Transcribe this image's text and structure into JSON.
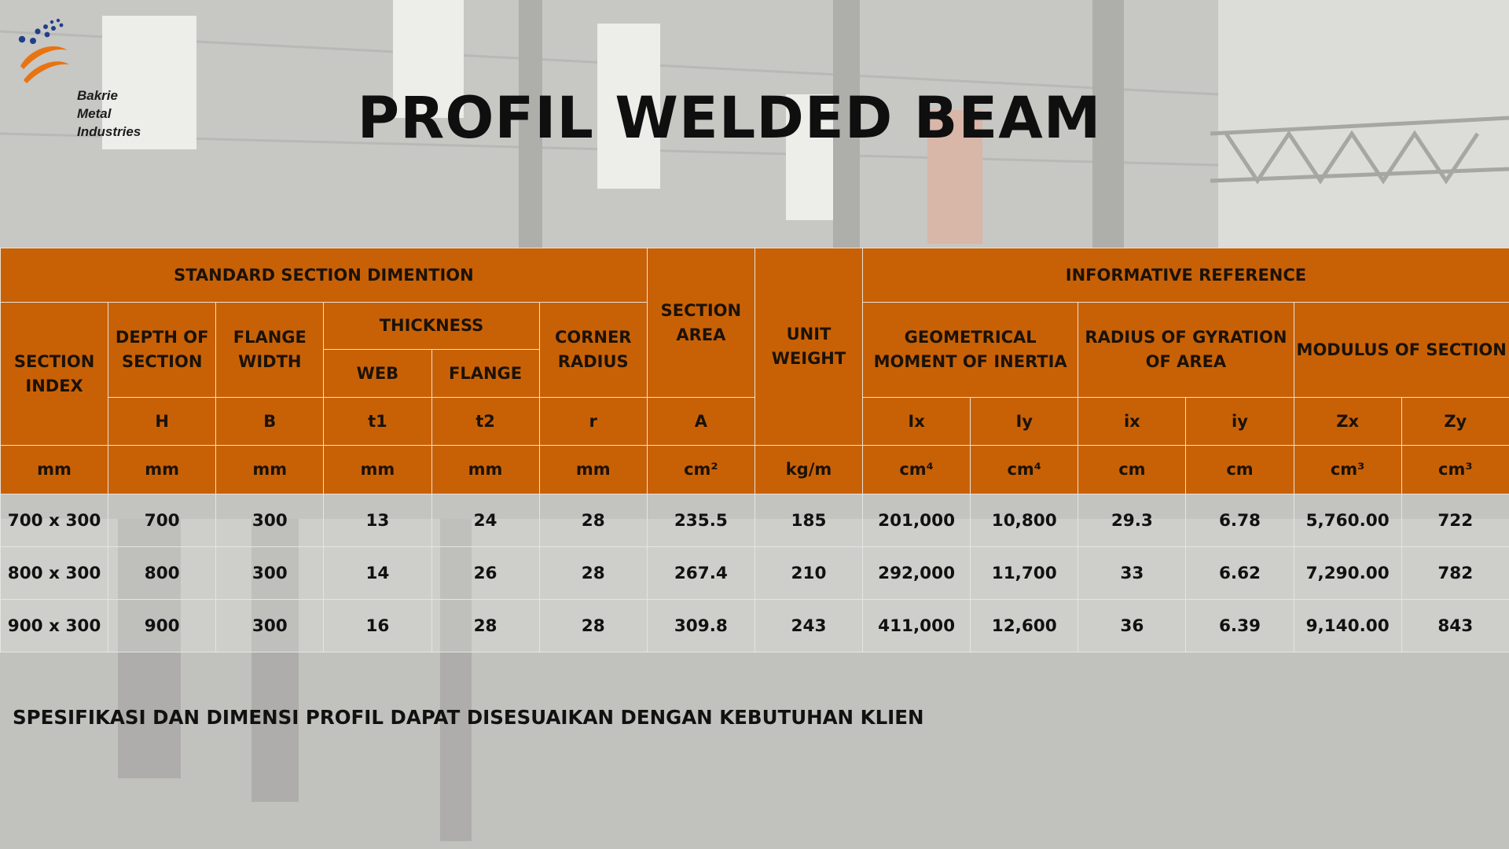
{
  "brand": {
    "name_lines": [
      "Bakrie",
      "Metal",
      "Industries"
    ],
    "logo_icon": "bakrie-swoosh-logo",
    "accent_color": "#e87411",
    "dot_color": "#1f3f8a"
  },
  "title": "PROFIL WELDED BEAM",
  "table": {
    "header_color": "#c86106",
    "groups": {
      "standard": "STANDARD SECTION DIMENTION",
      "section_area": "SECTION AREA",
      "unit_weight": "UNIT WEIGHT",
      "informative": "INFORMATIVE REFERENCE"
    },
    "columns": {
      "section_index": "SECTION INDEX",
      "depth": "DEPTH OF SECTION",
      "flange_width": "FLANGE WIDTH",
      "thickness": "THICKNESS",
      "web": "WEB",
      "flange": "FLANGE",
      "corner_radius": "CORNER RADIUS",
      "moment_inertia": "GEOMETRICAL MOMENT OF INERTIA",
      "radius_gyration": "RADIUS OF GYRATION OF AREA",
      "modulus": "MODULUS OF SECTION"
    },
    "symbols": [
      "H",
      "B",
      "t1",
      "t2",
      "r",
      "A",
      "Ix",
      "Iy",
      "ix",
      "iy",
      "Zx",
      "Zy"
    ],
    "units": [
      "mm",
      "mm",
      "mm",
      "mm",
      "mm",
      "mm",
      "cm²",
      "kg/m",
      "cm⁴",
      "cm⁴",
      "cm",
      "cm",
      "cm³",
      "cm³"
    ],
    "rows": [
      [
        "700 x 300",
        "700",
        "300",
        "13",
        "24",
        "28",
        "235.5",
        "185",
        "201,000",
        "10,800",
        "29.3",
        "6.78",
        "5,760.00",
        "722"
      ],
      [
        "800 x 300",
        "800",
        "300",
        "14",
        "26",
        "28",
        "267.4",
        "210",
        "292,000",
        "11,700",
        "33",
        "6.62",
        "7,290.00",
        "782"
      ],
      [
        "900 x 300",
        "900",
        "300",
        "16",
        "28",
        "28",
        "309.8",
        "243",
        "411,000",
        "12,600",
        "36",
        "6.39",
        "9,140.00",
        "843"
      ]
    ]
  },
  "note": "SPESIFIKASI DAN DIMENSI PROFIL DAPAT DISESUAIKAN DENGAN KEBUTUHAN KLIEN"
}
